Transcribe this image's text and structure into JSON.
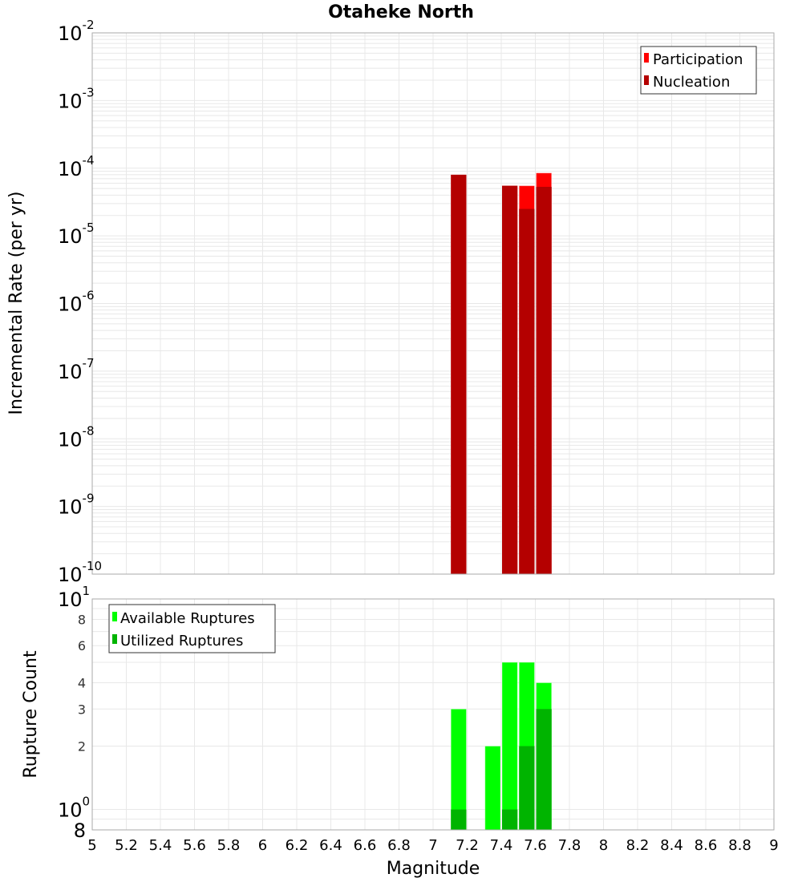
{
  "chart_data": [
    {
      "type": "bar",
      "title": "Otaheke North",
      "xlabel": "Magnitude",
      "ylabel": "Incremental Rate (per yr)",
      "yscale": "log",
      "ylim": [
        1e-10,
        0.01
      ],
      "xlim": [
        5,
        9
      ],
      "bin_width": 0.1,
      "yticks": [
        "10^-2",
        "10^-3",
        "10^-4",
        "10^-5",
        "10^-6",
        "10^-7",
        "10^-8",
        "10^-9",
        "10^-10"
      ],
      "grid": true,
      "legend_position": "top-right",
      "x": [
        7.15,
        7.45,
        7.55,
        7.65
      ],
      "series": [
        {
          "name": "Participation",
          "color": "#FF0000",
          "values": [
            8e-05,
            5.5e-05,
            5.5e-05,
            8.5e-05
          ]
        },
        {
          "name": "Nucleation",
          "color": "#B40000",
          "values": [
            8e-05,
            5.5e-05,
            2.5e-05,
            5.3e-05
          ]
        }
      ]
    },
    {
      "type": "bar",
      "title": "",
      "xlabel": "Magnitude",
      "ylabel": "Rupture Count",
      "yscale": "log",
      "ylim": [
        0.8,
        10
      ],
      "xlim": [
        5,
        9
      ],
      "bin_width": 0.1,
      "yticks": [
        "10^1",
        "8",
        "6",
        "4",
        "3",
        "2",
        "10^0",
        "8"
      ],
      "grid": true,
      "legend_position": "top-left",
      "x": [
        7.15,
        7.35,
        7.45,
        7.55,
        7.65
      ],
      "series": [
        {
          "name": "Available Ruptures",
          "color": "#00FF00",
          "values": [
            3,
            2,
            5,
            5,
            4
          ]
        },
        {
          "name": "Utilized Ruptures",
          "color": "#00B400",
          "values": [
            1,
            0,
            1,
            2,
            3
          ]
        }
      ]
    }
  ],
  "xticks": [
    "5",
    "5.2",
    "5.4",
    "5.6",
    "5.8",
    "6",
    "6.2",
    "6.4",
    "6.6",
    "6.8",
    "7",
    "7.2",
    "7.4",
    "7.6",
    "7.8",
    "8",
    "8.2",
    "8.4",
    "8.6",
    "8.8",
    "9"
  ],
  "top_yticks": [
    {
      "base": "10",
      "exp": "-2"
    },
    {
      "base": "10",
      "exp": "-3"
    },
    {
      "base": "10",
      "exp": "-4"
    },
    {
      "base": "10",
      "exp": "-5"
    },
    {
      "base": "10",
      "exp": "-6"
    },
    {
      "base": "10",
      "exp": "-7"
    },
    {
      "base": "10",
      "exp": "-8"
    },
    {
      "base": "10",
      "exp": "-9"
    },
    {
      "base": "10",
      "exp": "-10"
    }
  ],
  "bottom_yticks": [
    {
      "value": 10,
      "base": "10",
      "exp": "1"
    },
    {
      "value": 8,
      "label": "8"
    },
    {
      "value": 6,
      "label": "6"
    },
    {
      "value": 4,
      "label": "4"
    },
    {
      "value": 3,
      "label": "3"
    },
    {
      "value": 2,
      "label": "2"
    },
    {
      "value": 1,
      "base": "10",
      "exp": "0"
    },
    {
      "value": 0.8,
      "label": "8"
    }
  ],
  "colors": {
    "frame": "#AAAAAA",
    "grid": "#E8E8E8",
    "participation": "#FF0000",
    "nucleation": "#B40000",
    "available": "#00FF00",
    "utilized": "#00B400"
  }
}
